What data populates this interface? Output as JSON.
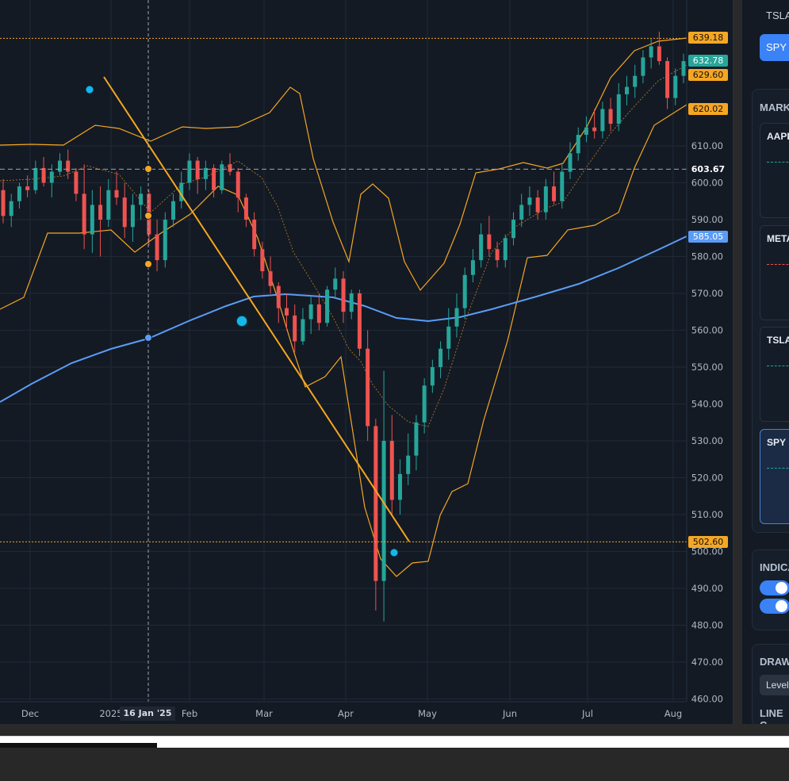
{
  "chart_data": {
    "type": "candlestick",
    "symbol": "SPY",
    "x_tick_labels": [
      "Dec",
      "2025",
      "Feb",
      "Mar",
      "Apr",
      "May",
      "Jun",
      "Jul",
      "Aug"
    ],
    "crosshair_date": "16 Jan '25",
    "y_ticks": [
      460,
      470,
      480,
      490,
      500,
      510,
      520,
      530,
      540,
      550,
      560,
      570,
      580,
      590,
      600,
      610
    ],
    "ylim": [
      460,
      640
    ],
    "grid": true,
    "overlays": [
      "Bollinger Bands",
      "Moving Average"
    ],
    "ma_value": 585.05,
    "last_price": 632.78,
    "horizontal_levels": [
      639.18,
      603.67,
      502.6
    ],
    "price_labels": [
      "639.18",
      "632.78",
      "629.60",
      "620.02",
      "603.67",
      "585.05",
      "502.60"
    ],
    "ohlc_approx": [
      [
        598,
        601,
        589,
        591
      ],
      [
        591,
        597,
        588,
        595
      ],
      [
        595,
        600,
        593,
        599
      ],
      [
        599,
        602,
        596,
        598
      ],
      [
        598,
        606,
        597,
        604
      ],
      [
        604,
        607,
        599,
        600
      ],
      [
        600,
        605,
        596,
        603
      ],
      [
        603,
        608,
        602,
        606
      ],
      [
        606,
        609,
        601,
        603
      ],
      [
        603,
        604,
        595,
        597
      ],
      [
        597,
        605,
        582,
        586
      ],
      [
        586,
        598,
        581,
        594
      ],
      [
        594,
        599,
        580,
        590
      ],
      [
        590,
        601,
        588,
        598
      ],
      [
        598,
        603,
        594,
        596
      ],
      [
        596,
        600,
        585,
        588
      ],
      [
        588,
        597,
        584,
        594
      ],
      [
        594,
        599,
        590,
        597
      ],
      [
        597,
        598,
        583,
        586
      ],
      [
        586,
        590,
        576,
        579
      ],
      [
        579,
        592,
        577,
        590
      ],
      [
        590,
        597,
        588,
        595
      ],
      [
        595,
        603,
        593,
        600
      ],
      [
        600,
        608,
        598,
        606
      ],
      [
        606,
        607,
        597,
        601
      ],
      [
        601,
        606,
        598,
        604
      ],
      [
        604,
        605,
        596,
        598
      ],
      [
        598,
        606,
        597,
        605
      ],
      [
        605,
        608,
        602,
        603
      ],
      [
        603,
        604,
        592,
        596
      ],
      [
        596,
        597,
        588,
        590
      ],
      [
        590,
        592,
        580,
        582
      ],
      [
        582,
        584,
        574,
        576
      ],
      [
        576,
        580,
        570,
        572
      ],
      [
        572,
        573,
        562,
        566
      ],
      [
        566,
        570,
        560,
        564
      ],
      [
        564,
        567,
        554,
        557
      ],
      [
        557,
        566,
        556,
        563
      ],
      [
        563,
        569,
        559,
        567
      ],
      [
        567,
        570,
        560,
        562
      ],
      [
        562,
        572,
        561,
        571
      ],
      [
        571,
        577,
        569,
        574
      ],
      [
        574,
        576,
        562,
        565
      ],
      [
        565,
        571,
        563,
        570
      ],
      [
        570,
        571,
        553,
        555
      ],
      [
        555,
        560,
        530,
        534
      ],
      [
        534,
        536,
        484,
        492
      ],
      [
        492,
        549,
        481,
        530
      ],
      [
        530,
        537,
        510,
        514
      ],
      [
        514,
        525,
        510,
        521
      ],
      [
        521,
        532,
        518,
        526
      ],
      [
        526,
        537,
        522,
        535
      ],
      [
        535,
        547,
        532,
        545
      ],
      [
        545,
        552,
        543,
        550
      ],
      [
        550,
        557,
        547,
        555
      ],
      [
        555,
        566,
        552,
        561
      ],
      [
        561,
        570,
        558,
        566
      ],
      [
        566,
        577,
        563,
        575
      ],
      [
        575,
        582,
        573,
        579
      ],
      [
        579,
        589,
        577,
        586
      ],
      [
        586,
        591,
        580,
        582
      ],
      [
        582,
        584,
        577,
        579
      ],
      [
        579,
        586,
        577,
        585
      ],
      [
        585,
        592,
        583,
        590
      ],
      [
        590,
        597,
        588,
        594
      ],
      [
        594,
        599,
        591,
        596
      ],
      [
        596,
        598,
        590,
        592
      ],
      [
        592,
        601,
        590,
        599
      ],
      [
        599,
        603,
        594,
        595
      ],
      [
        595,
        605,
        593,
        603
      ],
      [
        603,
        611,
        601,
        608
      ],
      [
        608,
        615,
        606,
        613
      ],
      [
        613,
        618,
        611,
        615
      ],
      [
        615,
        620,
        612,
        614
      ],
      [
        614,
        622,
        612,
        620
      ],
      [
        620,
        623,
        614,
        616
      ],
      [
        616,
        627,
        614,
        624
      ],
      [
        624,
        629,
        621,
        626
      ],
      [
        626,
        632,
        623,
        629
      ],
      [
        629,
        636,
        627,
        634
      ],
      [
        634,
        639,
        631,
        637
      ],
      [
        637,
        641,
        632,
        633
      ],
      [
        633,
        634,
        620,
        623
      ],
      [
        623,
        631,
        621,
        629
      ],
      [
        629,
        635,
        627,
        633
      ]
    ]
  },
  "right_panel": {
    "top_item": "TSLA",
    "active_button": "SPY",
    "markets_header": "MARKETS",
    "cards": [
      "AAPL",
      "META",
      "TSLA",
      "SPY"
    ],
    "indicators_header": "INDICATORS",
    "drawing_header": "DRAWING",
    "level_button": "Level",
    "line_header": "LINE C"
  },
  "colors": {
    "background": "#131a24",
    "up": "#26a69a",
    "down": "#ef5350",
    "bollinger": "#f5a623",
    "ma": "#5b9cf6",
    "marker": "#14b8e8",
    "accent": "#3a82f6"
  }
}
